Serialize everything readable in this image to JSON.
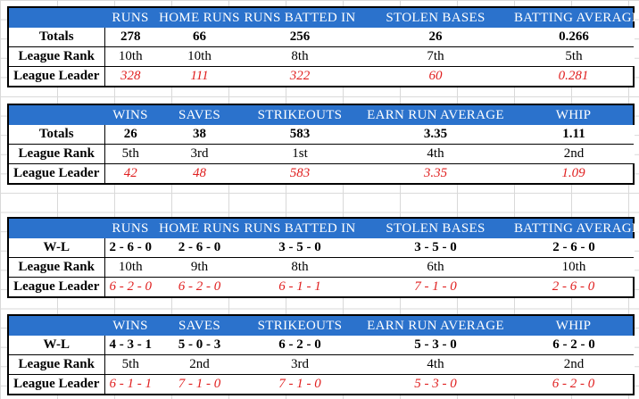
{
  "tables": [
    {
      "headers": [
        "RUNS",
        "HOME RUNS",
        "RUNS BATTED IN",
        "STOLEN BASES",
        "BATTING AVERAGE"
      ],
      "rows": [
        {
          "label": "Totals",
          "values": [
            "278",
            "66",
            "256",
            "26",
            "0.266"
          ]
        },
        {
          "label": "League Rank",
          "values": [
            "10th",
            "10th",
            "8th",
            "7th",
            "5th"
          ]
        },
        {
          "label": "League Leader",
          "values": [
            "328",
            "111",
            "322",
            "60",
            "0.281"
          ]
        }
      ]
    },
    {
      "headers": [
        "WINS",
        "SAVES",
        "STRIKEOUTS",
        "EARN RUN AVERAGE",
        "WHIP"
      ],
      "rows": [
        {
          "label": "Totals",
          "values": [
            "26",
            "38",
            "583",
            "3.35",
            "1.11"
          ]
        },
        {
          "label": "League Rank",
          "values": [
            "5th",
            "3rd",
            "1st",
            "4th",
            "2nd"
          ]
        },
        {
          "label": "League Leader",
          "values": [
            "42",
            "48",
            "583",
            "3.35",
            "1.09"
          ]
        }
      ]
    },
    {
      "headers": [
        "RUNS",
        "HOME RUNS",
        "RUNS BATTED IN",
        "STOLEN BASES",
        "BATTING AVERAGE"
      ],
      "rows": [
        {
          "label": "W-L",
          "values": [
            "2 - 6 - 0",
            "2 - 6 - 0",
            "3 - 5 - 0",
            "3 - 5 - 0",
            "2 - 6 - 0"
          ]
        },
        {
          "label": "League Rank",
          "values": [
            "10th",
            "9th",
            "8th",
            "6th",
            "10th"
          ]
        },
        {
          "label": "League Leader",
          "values": [
            "6 - 2 - 0",
            "6 - 2 - 0",
            "6 - 1 - 1",
            "7 - 1 - 0",
            "2 - 6 - 0"
          ]
        }
      ]
    },
    {
      "headers": [
        "WINS",
        "SAVES",
        "STRIKEOUTS",
        "EARN RUN AVERAGE",
        "WHIP"
      ],
      "rows": [
        {
          "label": "W-L",
          "values": [
            "4 - 3 - 1",
            "5 - 0 - 3",
            "6 - 2 - 0",
            "5 - 3 - 0",
            "6 - 2 - 0"
          ]
        },
        {
          "label": "League Rank",
          "values": [
            "5th",
            "2nd",
            "3rd",
            "4th",
            "2nd"
          ]
        },
        {
          "label": "League Leader",
          "values": [
            "6 - 1 - 1",
            "7 - 1 - 0",
            "7 - 1 - 0",
            "5 - 3 - 0",
            "6 - 2 - 0"
          ]
        }
      ]
    }
  ],
  "colors": {
    "header_bg": "#2b72cc",
    "header_text": "#ffffff",
    "leader_text": "#e02020",
    "grid": "#d9d9d9"
  }
}
